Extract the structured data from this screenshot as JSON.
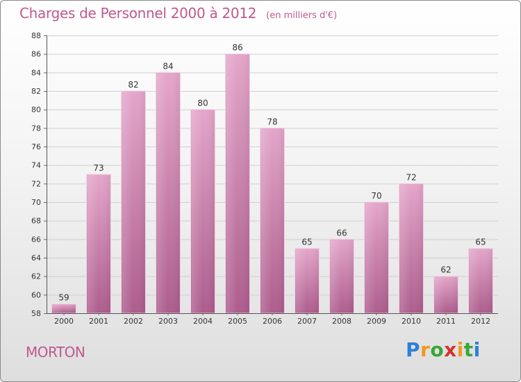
{
  "title": "Charges de Personnel 2000 à 2012",
  "unit_note": "(en milliers d'€)",
  "location": "MORTON",
  "brand": {
    "letters": [
      "P",
      "r",
      "o",
      "x",
      "i",
      "t",
      "i"
    ],
    "colors": [
      "#2f7fd6",
      "#f09a1e",
      "#3aa637",
      "#d6312f",
      "#f09a1e",
      "#3aa637",
      "#2f7fd6"
    ]
  },
  "colors": {
    "accent": "#c0588d",
    "bar_top": "#e4a6ca",
    "bar_bottom": "#ad5d8d"
  },
  "chart_data": {
    "type": "bar",
    "categories": [
      "2000",
      "2001",
      "2002",
      "2003",
      "2004",
      "2005",
      "2006",
      "2007",
      "2008",
      "2009",
      "2010",
      "2011",
      "2012"
    ],
    "values": [
      59,
      73,
      82,
      84,
      80,
      86,
      78,
      65,
      66,
      70,
      72,
      62,
      65
    ],
    "ylim": [
      58,
      88
    ],
    "yticks": [
      58,
      60,
      62,
      64,
      66,
      68,
      70,
      72,
      74,
      76,
      78,
      80,
      82,
      84,
      86,
      88
    ],
    "xlabel": "",
    "ylabel": "",
    "grid": true,
    "data_labels": true
  }
}
